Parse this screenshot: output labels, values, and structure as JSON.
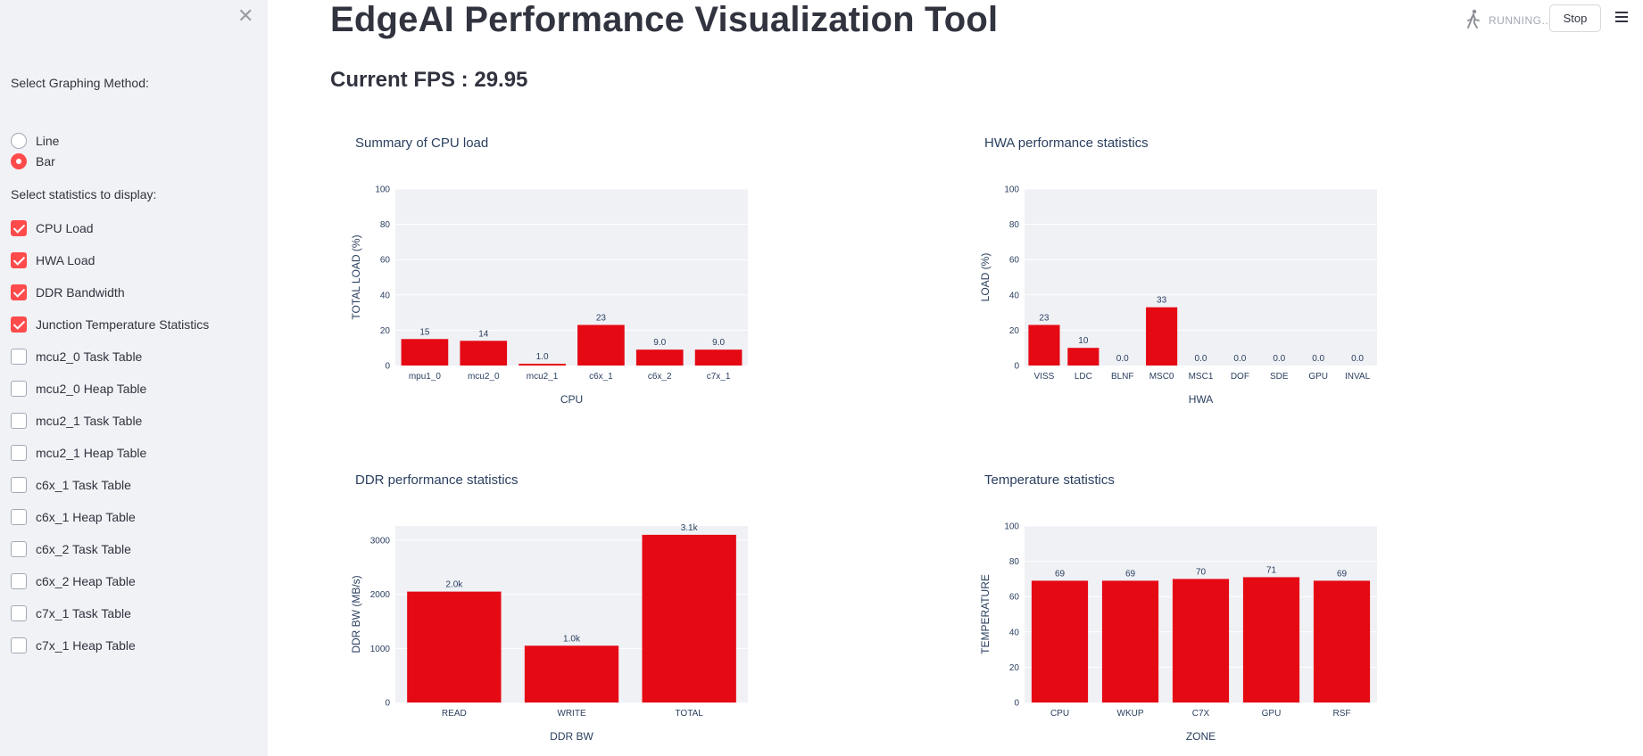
{
  "app": {
    "title": "EdgeAI Performance Visualization Tool",
    "fps_text": "Current FPS : 29.95",
    "status": "RUNNING...",
    "stop_label": "Stop",
    "close_icon": "close-icon",
    "menu_icon": "hamburger-menu-icon",
    "running_icon": "running-man-icon"
  },
  "sidebar": {
    "graph_method_label": "Select Graphing Method:",
    "graph_methods": [
      {
        "label": "Line",
        "selected": false
      },
      {
        "label": "Bar",
        "selected": true
      }
    ],
    "stats_label": "Select statistics to display:",
    "stats": [
      {
        "label": "CPU Load",
        "checked": true
      },
      {
        "label": "HWA Load",
        "checked": true
      },
      {
        "label": "DDR Bandwidth",
        "checked": true
      },
      {
        "label": "Junction Temperature Statistics",
        "checked": true
      },
      {
        "label": "mcu2_0 Task Table",
        "checked": false
      },
      {
        "label": "mcu2_0 Heap Table",
        "checked": false
      },
      {
        "label": "mcu2_1 Task Table",
        "checked": false
      },
      {
        "label": "mcu2_1 Heap Table",
        "checked": false
      },
      {
        "label": "c6x_1 Task Table",
        "checked": false
      },
      {
        "label": "c6x_1 Heap Table",
        "checked": false
      },
      {
        "label": "c6x_2 Task Table",
        "checked": false
      },
      {
        "label": "c6x_2 Heap Table",
        "checked": false
      },
      {
        "label": "c7x_1 Task Table",
        "checked": false
      },
      {
        "label": "c7x_1 Heap Table",
        "checked": false
      }
    ]
  },
  "colors": {
    "accent": "#ff4b4b",
    "bar": "#e50914",
    "plot_bg": "#e5ecf6",
    "sidebar_bg": "#f0f2f6"
  },
  "chart_data": [
    {
      "type": "bar",
      "title": "Summary of CPU load",
      "xlabel": "CPU",
      "ylabel": "TOTAL LOAD (%)",
      "categories": [
        "mpu1_0",
        "mcu2_0",
        "mcu2_1",
        "c6x_1",
        "c6x_2",
        "c7x_1"
      ],
      "values": [
        15,
        14,
        1.0,
        23,
        9.0,
        9.0
      ],
      "labels": [
        "15",
        "14",
        "1.0",
        "23",
        "9.0",
        "9.0"
      ],
      "ylim": [
        0,
        100
      ],
      "yticks": [
        "0",
        "20",
        "40",
        "60",
        "80",
        "100"
      ],
      "ytick_values": [
        0,
        20,
        40,
        60,
        80,
        100
      ]
    },
    {
      "type": "bar",
      "title": "HWA performance statistics",
      "xlabel": "HWA",
      "ylabel": "LOAD (%)",
      "categories": [
        "VISS",
        "LDC",
        "BLNF",
        "MSC0",
        "MSC1",
        "DOF",
        "SDE",
        "GPU",
        "INVAL"
      ],
      "values": [
        23,
        10,
        0.0,
        33,
        0.0,
        0.0,
        0.0,
        0.0,
        0.0
      ],
      "labels": [
        "23",
        "10",
        "0.0",
        "33",
        "0.0",
        "0.0",
        "0.0",
        "0.0",
        "0.0"
      ],
      "ylim": [
        0,
        100
      ],
      "yticks": [
        "0",
        "20",
        "40",
        "60",
        "80",
        "100"
      ],
      "ytick_values": [
        0,
        20,
        40,
        60,
        80,
        100
      ]
    },
    {
      "type": "bar",
      "title": "DDR performance statistics",
      "xlabel": "DDR BW",
      "ylabel": "DDR BW (MB/s)",
      "categories": [
        "READ",
        "WRITE",
        "TOTAL"
      ],
      "values": [
        2050,
        1050,
        3100
      ],
      "labels": [
        "2.0k",
        "1.0k",
        "3.1k"
      ],
      "ylim": [
        0,
        3263
      ],
      "yticks": [
        "0",
        "1000",
        "2000",
        "3000"
      ],
      "ytick_values": [
        0,
        1000,
        2000,
        3000
      ]
    },
    {
      "type": "bar",
      "title": "Temperature statistics",
      "xlabel": "ZONE",
      "ylabel": "TEMPERATURE",
      "categories": [
        "CPU",
        "WKUP",
        "C7X",
        "GPU",
        "RSF"
      ],
      "values": [
        69,
        69,
        70,
        71,
        69
      ],
      "labels": [
        "69",
        "69",
        "70",
        "71",
        "69"
      ],
      "ylim": [
        0,
        100
      ],
      "yticks": [
        "0",
        "20",
        "40",
        "60",
        "80",
        "100"
      ],
      "ytick_values": [
        0,
        20,
        40,
        60,
        80,
        100
      ]
    }
  ]
}
